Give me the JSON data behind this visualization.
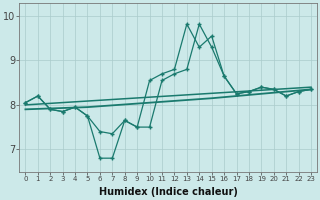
{
  "xlabel": "Humidex (Indice chaleur)",
  "xlim": [
    -0.5,
    23.5
  ],
  "ylim": [
    6.5,
    10.3
  ],
  "yticks": [
    7,
    8,
    9,
    10
  ],
  "xticks": [
    0,
    1,
    2,
    3,
    4,
    5,
    6,
    7,
    8,
    9,
    10,
    11,
    12,
    13,
    14,
    15,
    16,
    17,
    18,
    19,
    20,
    21,
    22,
    23
  ],
  "bg_color": "#cce9e9",
  "line_color": "#1a7a6e",
  "line1_x": [
    0,
    1,
    2,
    3,
    4,
    5,
    6,
    7,
    8,
    9,
    10,
    11,
    12,
    13,
    14,
    15,
    16,
    17,
    18,
    19,
    20,
    21,
    22,
    23
  ],
  "line1_y": [
    8.05,
    8.2,
    7.9,
    7.85,
    7.95,
    7.75,
    7.4,
    7.35,
    7.65,
    7.5,
    8.55,
    8.7,
    8.8,
    9.82,
    9.3,
    9.55,
    8.65,
    8.25,
    8.3,
    8.4,
    8.35,
    8.2,
    8.3,
    8.35
  ],
  "line2_x": [
    0,
    1,
    2,
    3,
    4,
    5,
    6,
    7,
    8,
    9,
    10,
    11,
    12,
    13,
    14,
    15,
    16,
    17,
    18,
    19,
    20,
    21,
    22,
    23
  ],
  "line2_y": [
    8.05,
    8.2,
    7.9,
    7.85,
    7.95,
    7.75,
    6.8,
    6.8,
    7.65,
    7.5,
    7.5,
    8.55,
    8.7,
    8.8,
    9.82,
    9.3,
    8.65,
    8.25,
    8.3,
    8.4,
    8.35,
    8.2,
    8.3,
    8.35
  ],
  "line3_x": [
    0,
    5,
    10,
    15,
    17,
    19,
    21,
    23
  ],
  "line3_y": [
    7.9,
    7.95,
    8.05,
    8.15,
    8.2,
    8.25,
    8.3,
    8.35
  ]
}
